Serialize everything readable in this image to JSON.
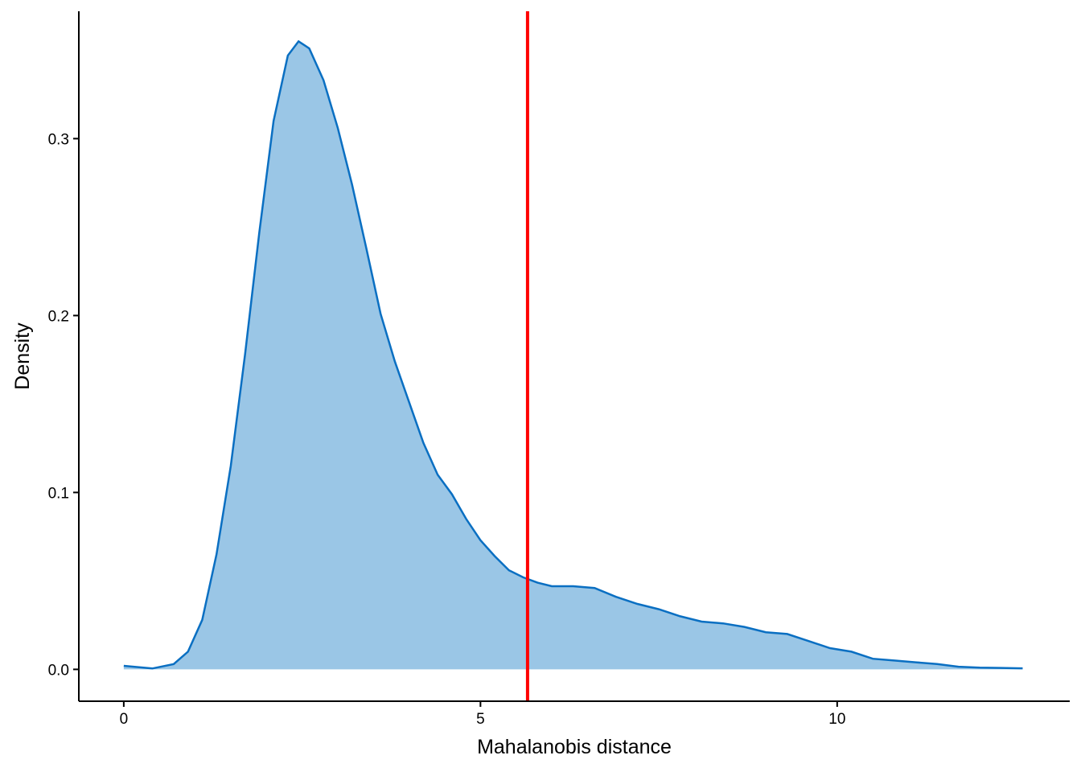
{
  "chart_data": {
    "type": "area",
    "x_label": "Mahalanobis distance",
    "y_label": "Density",
    "x": [
      0,
      0.4,
      0.7,
      0.9,
      1.1,
      1.3,
      1.5,
      1.7,
      1.9,
      2.1,
      2.3,
      2.45,
      2.6,
      2.8,
      3.0,
      3.2,
      3.4,
      3.6,
      3.8,
      4.0,
      4.2,
      4.4,
      4.6,
      4.8,
      5.0,
      5.2,
      5.4,
      5.6,
      5.8,
      6.0,
      6.3,
      6.6,
      6.9,
      7.2,
      7.5,
      7.8,
      8.1,
      8.4,
      8.7,
      9.0,
      9.3,
      9.6,
      9.9,
      10.2,
      10.5,
      10.8,
      11.1,
      11.4,
      11.7,
      12.0,
      12.3,
      12.6
    ],
    "values": [
      0.002,
      0.0005,
      0.003,
      0.01,
      0.028,
      0.065,
      0.115,
      0.178,
      0.247,
      0.31,
      0.347,
      0.355,
      0.351,
      0.333,
      0.306,
      0.274,
      0.238,
      0.201,
      0.174,
      0.151,
      0.128,
      0.11,
      0.099,
      0.085,
      0.073,
      0.064,
      0.056,
      0.052,
      0.049,
      0.047,
      0.047,
      0.046,
      0.041,
      0.037,
      0.034,
      0.03,
      0.027,
      0.026,
      0.024,
      0.021,
      0.02,
      0.016,
      0.012,
      0.01,
      0.006,
      0.005,
      0.004,
      0.003,
      0.0015,
      0.001,
      0.0008,
      0.0006
    ],
    "color": "#0a6fc2",
    "fill": "#9ac6e6",
    "vline": {
      "x": 5.66,
      "color": "#ff0000"
    },
    "xlim": [
      -0.63,
      13.26
    ],
    "xticks": [
      0,
      5,
      10
    ],
    "ylim": [
      -0.018,
      0.372
    ],
    "yticks": [
      {
        "value": 0,
        "label": "0.0"
      },
      0.1,
      0.2,
      0.3
    ]
  }
}
